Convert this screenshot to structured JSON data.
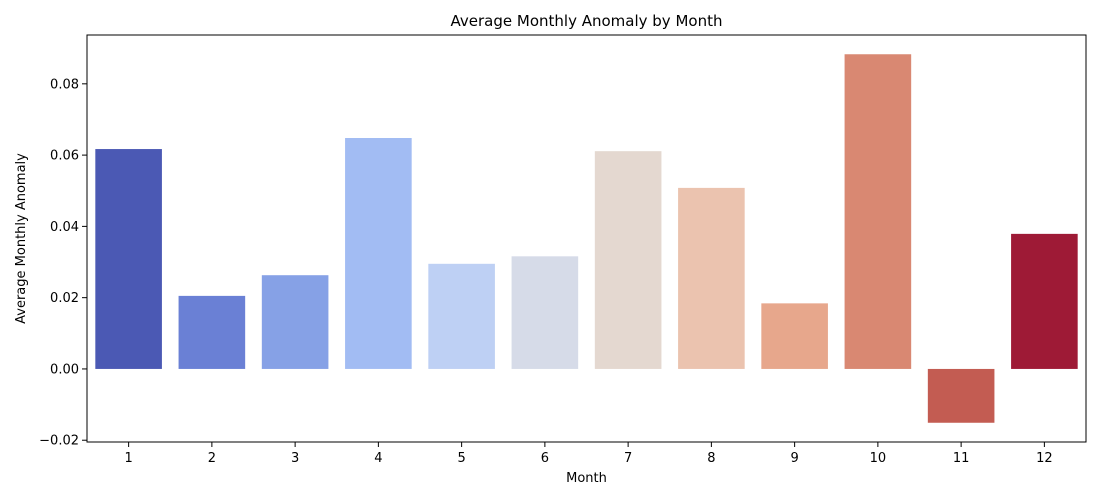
{
  "chart_data": {
    "type": "bar",
    "title": "Average Monthly Anomaly by Month",
    "xlabel": "Month",
    "ylabel": "Average Monthly Anomaly",
    "categories": [
      "1",
      "2",
      "3",
      "4",
      "5",
      "6",
      "7",
      "8",
      "9",
      "10",
      "11",
      "12"
    ],
    "values": [
      0.0617,
      0.0205,
      0.0263,
      0.0648,
      0.0295,
      0.0316,
      0.0611,
      0.0508,
      0.0184,
      0.0883,
      -0.0151,
      0.0379
    ],
    "colors": [
      "#4b59b4",
      "#6a80d5",
      "#86a1e6",
      "#a2bcf3",
      "#bed0f4",
      "#d6dbe8",
      "#e4d8d0",
      "#ebc3af",
      "#e7a78c",
      "#d98872",
      "#c35c52",
      "#9e1a36"
    ],
    "ylim": [
      -0.0205,
      0.0937
    ],
    "yticks": [
      -0.02,
      0.0,
      0.02,
      0.04,
      0.06,
      0.08
    ],
    "ytick_labels": [
      "−0.02",
      "0.00",
      "0.02",
      "0.04",
      "0.06",
      "0.08"
    ],
    "grid": false,
    "legend": "none"
  }
}
